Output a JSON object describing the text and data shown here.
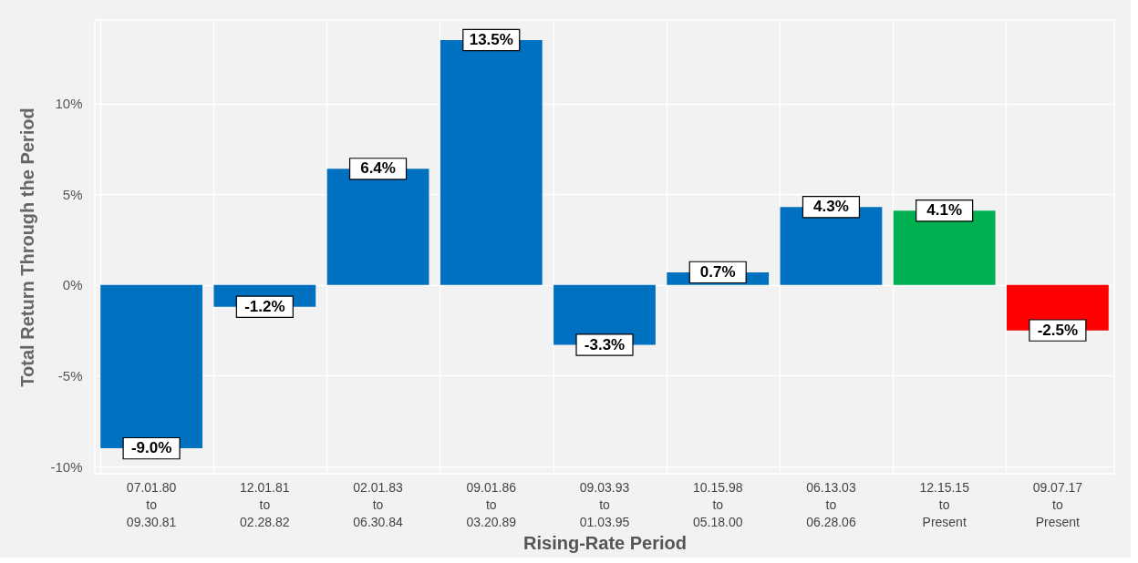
{
  "chart_data": {
    "type": "bar",
    "xlabel": "Rising-Rate Period",
    "ylabel": "Total Return Through the Period",
    "categories": [
      "07.01.80\nto\n09.30.81",
      "12.01.81\nto\n02.28.82",
      "02.01.83\nto\n06.30.84",
      "09.01.86\nto\n03.20.89",
      "09.03.93\nto\n01.03.95",
      "10.15.98\nto\n05.18.00",
      "06.13.03\nto\n06.28.06",
      "12.15.15\nto\nPresent",
      "09.07.17\nto\nPresent"
    ],
    "values": [
      -9.0,
      -1.2,
      6.4,
      13.5,
      -3.3,
      0.7,
      4.3,
      4.1,
      -2.5
    ],
    "colors": [
      "#0070c0",
      "#0070c0",
      "#0070c0",
      "#0070c0",
      "#0070c0",
      "#0070c0",
      "#0070c0",
      "#00b050",
      "#ff0000"
    ],
    "value_labels": [
      "-9.0%",
      "-1.2%",
      "6.4%",
      "13.5%",
      "-3.3%",
      "0.7%",
      "4.3%",
      "4.1%",
      "-2.5%"
    ],
    "ylim": [
      -10.4,
      14.6
    ],
    "yticks": [
      {
        "value": -10,
        "label": "-10%"
      },
      {
        "value": -5,
        "label": "-5%"
      },
      {
        "value": 0,
        "label": "0%"
      },
      {
        "value": 5,
        "label": "5%"
      },
      {
        "value": 10,
        "label": "10%"
      }
    ],
    "grid": true
  }
}
